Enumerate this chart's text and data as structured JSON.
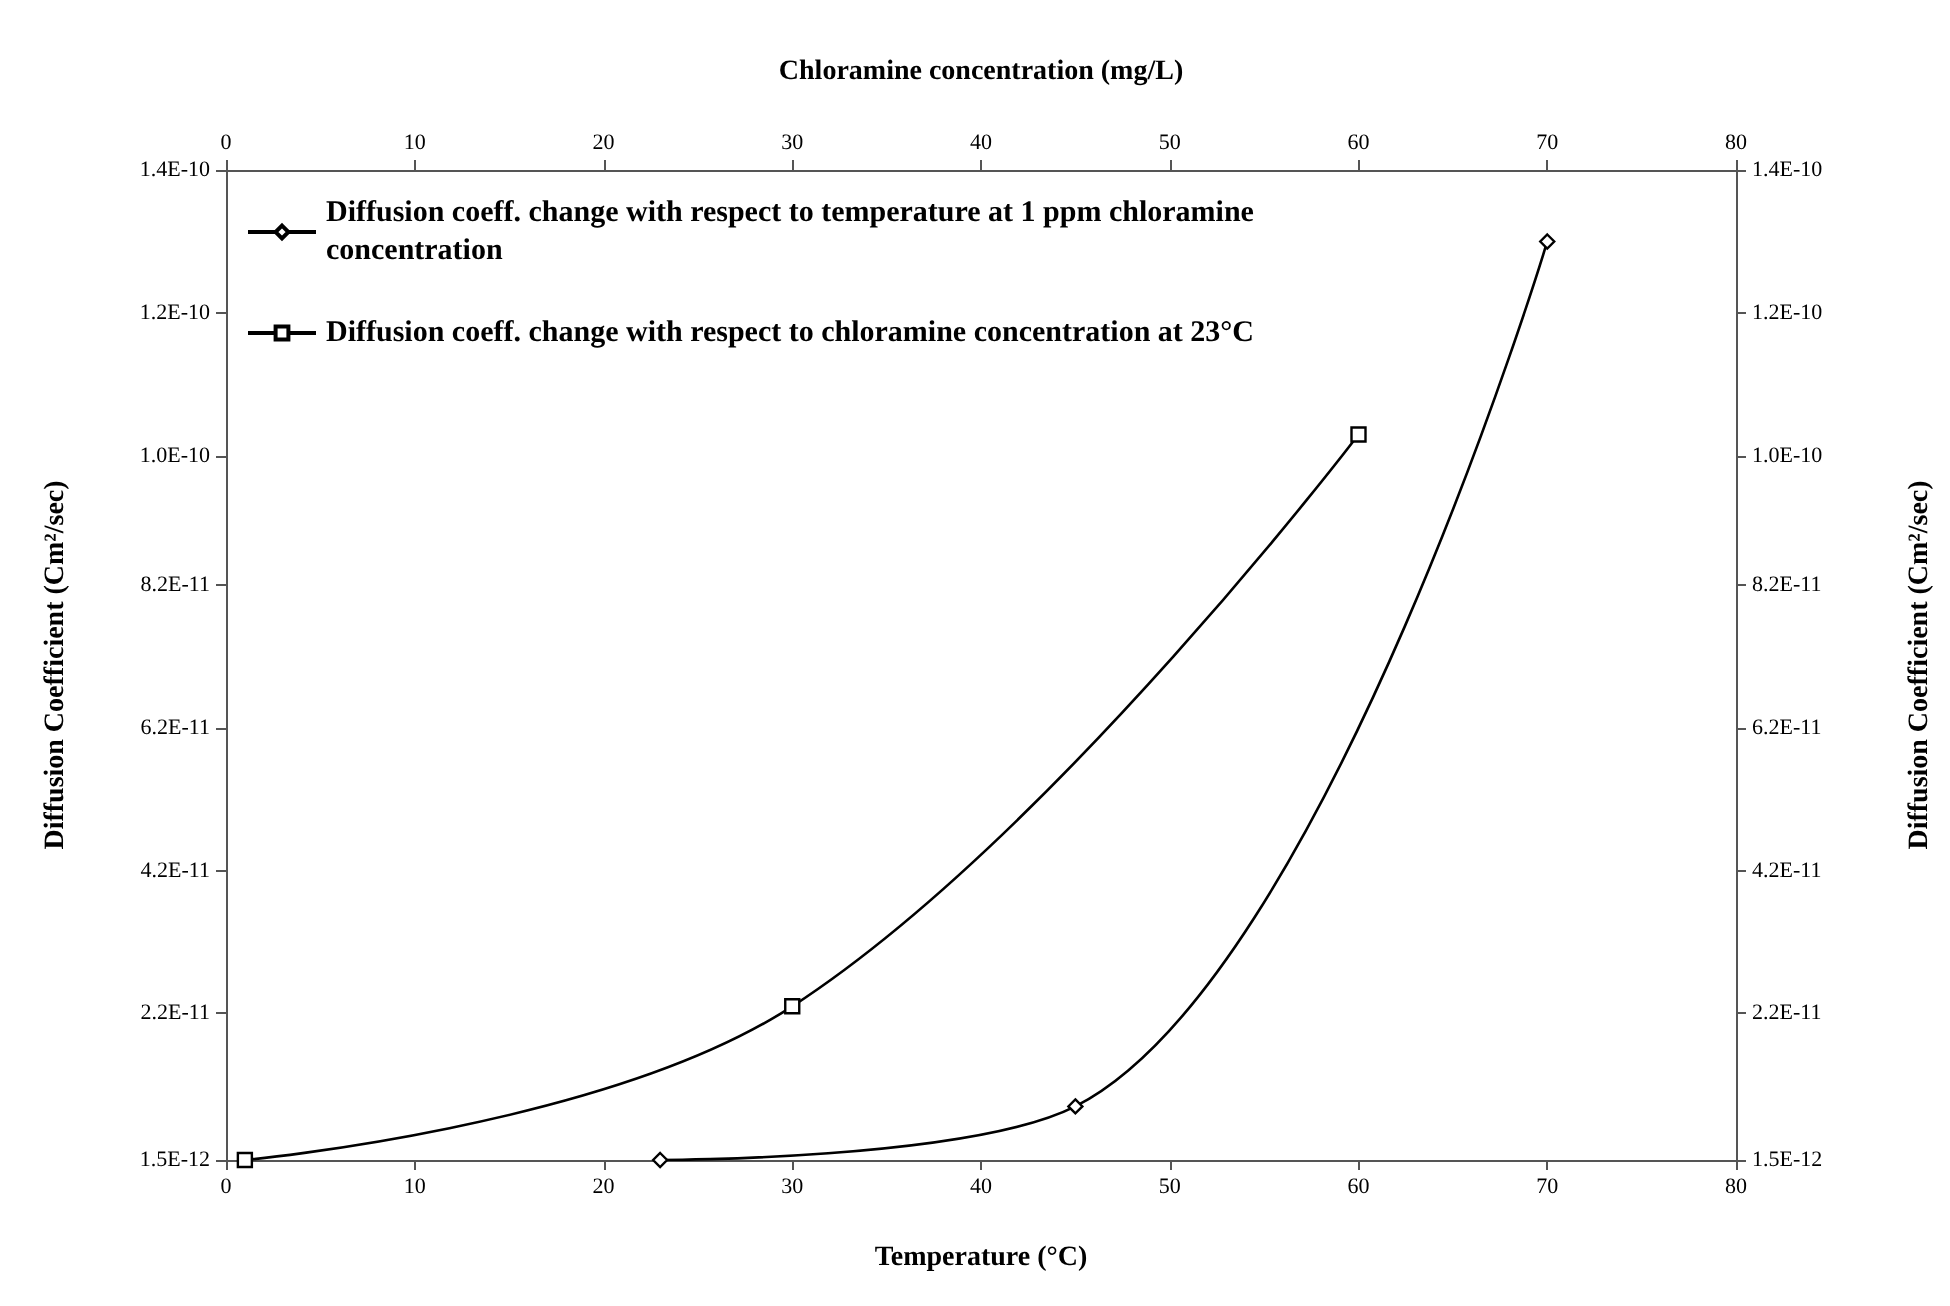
{
  "chart_data": {
    "type": "line",
    "xlabel": "Temperature (°C)",
    "x2label": "Chloramine concentration (mg/L)",
    "ylabel": "Diffusion Coefficient (Cm²/sec)",
    "y2label": "Diffusion Coefficient (Cm²/sec)",
    "xlim": [
      0,
      80
    ],
    "xticks": [
      0,
      10,
      20,
      30,
      40,
      50,
      60,
      70,
      80
    ],
    "x2lim": [
      0,
      80
    ],
    "x2ticks": [
      0,
      10,
      20,
      30,
      40,
      50,
      60,
      70,
      80
    ],
    "ylim": [
      1.5e-12,
      1.4e-10
    ],
    "yticks": [
      {
        "value": 1.5e-12,
        "label": "1.5E-12"
      },
      {
        "value": 2.2e-11,
        "label": "2.2E-11"
      },
      {
        "value": 4.2e-11,
        "label": "4.2E-11"
      },
      {
        "value": 6.2e-11,
        "label": "6.2E-11"
      },
      {
        "value": 8.2e-11,
        "label": "8.2E-11"
      },
      {
        "value": 1e-10,
        "label": "1.0E-10"
      },
      {
        "value": 1.2e-10,
        "label": "1.2E-10"
      },
      {
        "value": 1.4e-10,
        "label": "1.4E-10"
      }
    ],
    "y2lim": [
      1.5e-12,
      1.4e-10
    ],
    "y2ticks": [
      {
        "value": 1.5e-12,
        "label": "1.5E-12"
      },
      {
        "value": 2.2e-11,
        "label": "2.2E-11"
      },
      {
        "value": 4.2e-11,
        "label": "4.2E-11"
      },
      {
        "value": 6.2e-11,
        "label": "6.2E-11"
      },
      {
        "value": 8.2e-11,
        "label": "8.2E-11"
      },
      {
        "value": 1e-10,
        "label": "1.0E-10"
      },
      {
        "value": 1.2e-10,
        "label": "1.2E-10"
      },
      {
        "value": 1.4e-10,
        "label": "1.4E-10"
      }
    ],
    "grid": false,
    "legend": "top left",
    "line_style": "solid",
    "series": [
      {
        "name": "Diffusion coeff. change with respect to temperature at 1 ppm chloramine concentration",
        "color": "#000000",
        "marker": "diamond",
        "x": [
          23,
          45,
          70
        ],
        "values": [
          1.5e-12,
          9e-12,
          1.3e-10
        ]
      },
      {
        "name": "Diffusion coeff. change with respect to chloramine concentration at 23°C",
        "color": "#000000",
        "marker": "square",
        "axis": "x2",
        "x": [
          1,
          30,
          60
        ],
        "values": [
          1.5e-12,
          2.3e-11,
          1.03e-10
        ]
      }
    ]
  }
}
